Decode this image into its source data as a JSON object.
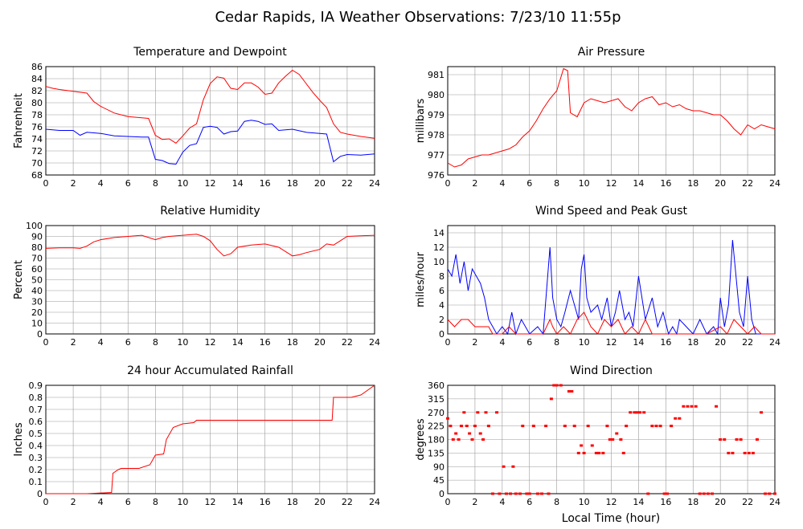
{
  "title": "Cedar Rapids, IA Weather Observations: 7/23/10 11:55p",
  "xlabel_shared": "Local Time (hour)",
  "colors": {
    "red": "#ff0000",
    "blue": "#0000ff",
    "grid": "#999999"
  },
  "chart_data": [
    {
      "type": "line",
      "title": "Temperature and Dewpoint",
      "xlabel": "",
      "ylabel": "Fahrenheit",
      "xlim": [
        0,
        24
      ],
      "ylim": [
        68,
        86
      ],
      "xticks": [
        0,
        2,
        4,
        6,
        8,
        10,
        12,
        14,
        16,
        18,
        20,
        22,
        24
      ],
      "yticks": [
        68,
        70,
        72,
        74,
        76,
        78,
        80,
        82,
        84,
        86
      ],
      "series": [
        {
          "color": "#ff0000",
          "x": [
            0,
            0.5,
            1,
            2,
            3,
            3.5,
            4,
            5,
            6,
            7,
            7.5,
            8,
            8.5,
            9,
            9.5,
            10,
            10.5,
            11,
            11.5,
            12,
            12.5,
            13,
            13.5,
            14,
            14.5,
            15,
            15.5,
            16,
            16.5,
            17,
            17.5,
            18,
            18.5,
            19,
            19.5,
            20,
            20.5,
            21,
            21.5,
            22,
            23,
            24
          ],
          "y": [
            82.7,
            82.4,
            82.2,
            81.9,
            81.6,
            80.2,
            79.4,
            78.3,
            77.7,
            77.5,
            77.4,
            74.6,
            73.9,
            74,
            73.3,
            74.5,
            75.8,
            76.5,
            80.5,
            83.2,
            84.3,
            84.1,
            82.4,
            82.2,
            83.3,
            83.3,
            82.6,
            81.4,
            81.6,
            83.3,
            84.4,
            85.4,
            84.7,
            83.2,
            81.7,
            80.4,
            79.2,
            76.5,
            75.1,
            74.8,
            74.4,
            74.1
          ]
        },
        {
          "color": "#0000ff",
          "x": [
            0,
            0.5,
            1,
            2,
            2.5,
            3,
            4,
            5,
            6,
            7,
            7.5,
            8,
            8.5,
            9,
            9.5,
            10,
            10.5,
            11,
            11.5,
            12,
            12.5,
            13,
            13.5,
            14,
            14.5,
            15,
            15.5,
            16,
            16.5,
            17,
            18,
            19,
            20,
            20.5,
            21,
            21.5,
            22,
            23,
            24
          ],
          "y": [
            75.6,
            75.5,
            75.4,
            75.4,
            74.6,
            75.1,
            74.9,
            74.5,
            74.4,
            74.3,
            74.3,
            70.6,
            70.4,
            69.9,
            69.8,
            71.8,
            72.9,
            73.2,
            75.9,
            76.1,
            75.9,
            74.8,
            75.2,
            75.3,
            76.9,
            77.1,
            76.9,
            76.4,
            76.5,
            75.4,
            75.6,
            75.1,
            74.9,
            74.8,
            70.2,
            71.1,
            71.4,
            71.3,
            71.5
          ]
        }
      ]
    },
    {
      "type": "line",
      "title": "Air Pressure",
      "xlabel": "",
      "ylabel": "millibars",
      "xlim": [
        0,
        24
      ],
      "ylim": [
        976,
        981.4
      ],
      "xticks": [
        0,
        2,
        4,
        6,
        8,
        10,
        12,
        14,
        16,
        18,
        20,
        22,
        24
      ],
      "yticks": [
        976,
        977,
        978,
        979,
        980,
        981
      ],
      "series": [
        {
          "color": "#ff0000",
          "x": [
            0,
            0.5,
            1,
            1.5,
            2,
            2.5,
            3,
            3.5,
            4,
            4.5,
            5,
            5.5,
            6,
            6.5,
            7,
            7.5,
            8,
            8.5,
            8.8,
            9,
            9.5,
            10,
            10.5,
            11,
            11.5,
            12,
            12.5,
            13,
            13.5,
            14,
            14.5,
            15,
            15.5,
            16,
            16.5,
            17,
            17.5,
            18,
            18.5,
            19,
            19.5,
            20,
            20.5,
            21,
            21.5,
            22,
            22.5,
            23,
            23.5,
            24
          ],
          "y": [
            976.6,
            976.4,
            976.5,
            976.8,
            976.9,
            977.0,
            977.0,
            977.1,
            977.2,
            977.3,
            977.5,
            977.9,
            978.2,
            978.7,
            979.3,
            979.8,
            980.2,
            981.3,
            981.2,
            979.1,
            978.9,
            979.6,
            979.8,
            979.7,
            979.6,
            979.7,
            979.8,
            979.4,
            979.2,
            979.6,
            979.8,
            979.9,
            979.5,
            979.6,
            979.4,
            979.5,
            979.3,
            979.2,
            979.2,
            979.1,
            979.0,
            979.0,
            978.7,
            978.3,
            978.0,
            978.5,
            978.3,
            978.5,
            978.4,
            978.3
          ]
        }
      ]
    },
    {
      "type": "line",
      "title": "Relative Humidity",
      "xlabel": "",
      "ylabel": "Percent",
      "xlim": [
        0,
        24
      ],
      "ylim": [
        0,
        100
      ],
      "xticks": [
        0,
        2,
        4,
        6,
        8,
        10,
        12,
        14,
        16,
        18,
        20,
        22,
        24
      ],
      "yticks": [
        0,
        10,
        20,
        30,
        40,
        50,
        60,
        70,
        80,
        90,
        100
      ],
      "series": [
        {
          "color": "#ff0000",
          "x": [
            0,
            1,
            2,
            2.5,
            3,
            3.5,
            4,
            5,
            6,
            7,
            8,
            8.5,
            9,
            10,
            11,
            11.5,
            12,
            12.5,
            13,
            13.5,
            14,
            15,
            16,
            17,
            18,
            18.5,
            19,
            20,
            20.5,
            21,
            21.5,
            22,
            23,
            24
          ],
          "y": [
            79,
            79.5,
            79.5,
            79,
            81,
            85,
            87,
            89,
            90,
            91,
            87,
            89,
            90,
            91,
            92,
            90,
            86,
            78,
            72,
            74,
            80,
            82,
            83,
            80,
            72,
            73,
            75,
            78,
            83,
            82,
            86,
            90,
            90.5,
            91
          ]
        }
      ]
    },
    {
      "type": "line",
      "title": "Wind Speed and Peak Gust",
      "xlabel": "",
      "ylabel": "miles/hour",
      "xlim": [
        0,
        24
      ],
      "ylim": [
        0,
        15
      ],
      "xticks": [
        0,
        2,
        4,
        6,
        8,
        10,
        12,
        14,
        16,
        18,
        20,
        22,
        24
      ],
      "yticks": [
        0,
        2,
        4,
        6,
        8,
        10,
        12,
        14
      ],
      "series": [
        {
          "color": "#0000ff",
          "x": [
            0,
            0.3,
            0.6,
            0.9,
            1.2,
            1.5,
            1.8,
            2.1,
            2.4,
            2.7,
            3,
            3.3,
            3.6,
            4,
            4.4,
            4.7,
            5,
            5.4,
            6,
            6.6,
            7,
            7.5,
            7.7,
            8,
            8.3,
            8.6,
            9,
            9.3,
            9.6,
            9.8,
            10,
            10.2,
            10.5,
            11,
            11.3,
            11.7,
            12,
            12.3,
            12.6,
            13,
            13.3,
            13.6,
            14,
            14.5,
            15,
            15.4,
            15.8,
            16.2,
            16.5,
            16.8,
            17,
            17.5,
            18,
            18.5,
            19,
            19.5,
            19.8,
            20,
            20.3,
            20.6,
            20.9,
            21.1,
            21.4,
            21.7,
            22,
            22.3,
            22.6,
            23,
            23.5,
            24
          ],
          "y": [
            9,
            8,
            11,
            7,
            10,
            6,
            9,
            8,
            7,
            5,
            2,
            1,
            0,
            1,
            0,
            3,
            0,
            2,
            0,
            1,
            0,
            12,
            5,
            2,
            1,
            3,
            6,
            4,
            2,
            9,
            11,
            5,
            3,
            4,
            2,
            5,
            1,
            3,
            6,
            2,
            3,
            1,
            8,
            2,
            5,
            1,
            3,
            0,
            1,
            0,
            2,
            1,
            0,
            2,
            0,
            1,
            0,
            5,
            1,
            4,
            13,
            9,
            3,
            1,
            8,
            2,
            0,
            0,
            0,
            0
          ]
        },
        {
          "color": "#ff0000",
          "x": [
            0,
            0.5,
            1,
            1.5,
            2,
            2.5,
            3,
            3.3,
            4,
            4.5,
            5,
            6,
            7,
            7.5,
            7.7,
            8,
            8.5,
            9,
            9.5,
            10,
            10.5,
            11,
            11.5,
            12,
            12.5,
            13,
            13.5,
            14,
            14.5,
            15,
            16,
            17,
            18,
            19,
            20,
            20.5,
            21,
            21.5,
            22,
            22.5,
            23,
            24
          ],
          "y": [
            2,
            1,
            2,
            2,
            1,
            1,
            1,
            0,
            0,
            1,
            0,
            0,
            0,
            2,
            1,
            0,
            1,
            0,
            2,
            3,
            1,
            0,
            2,
            1,
            2,
            0,
            1,
            0,
            2,
            0,
            0,
            0,
            0,
            0,
            1,
            0,
            2,
            1,
            0,
            1,
            0,
            0
          ]
        }
      ]
    },
    {
      "type": "line",
      "title": "24 hour Accumulated Rainfall",
      "xlabel": "",
      "ylabel": "Inches",
      "xlim": [
        0,
        24
      ],
      "ylim": [
        0,
        0.9
      ],
      "xticks": [
        0,
        2,
        4,
        6,
        8,
        10,
        12,
        14,
        16,
        18,
        20,
        22,
        24
      ],
      "yticks": [
        0,
        0.1,
        0.2,
        0.3,
        0.4,
        0.5,
        0.6,
        0.7,
        0.8,
        0.9
      ],
      "series": [
        {
          "color": "#ff0000",
          "x": [
            0,
            3,
            4.8,
            4.9,
            5.3,
            5.5,
            6.8,
            7.6,
            8.0,
            8.6,
            8.8,
            9.3,
            10.0,
            10.8,
            11.0,
            20.9,
            21.0,
            22.3,
            23.0,
            24.0
          ],
          "y": [
            0,
            0,
            0.01,
            0.17,
            0.2,
            0.21,
            0.21,
            0.24,
            0.32,
            0.33,
            0.45,
            0.55,
            0.58,
            0.59,
            0.61,
            0.61,
            0.8,
            0.8,
            0.82,
            0.9
          ]
        }
      ]
    },
    {
      "type": "scatter",
      "title": "Wind Direction",
      "xlabel": "Local Time (hour)",
      "ylabel": "degrees",
      "xlim": [
        0,
        24
      ],
      "ylim": [
        0,
        360
      ],
      "xticks": [
        0,
        2,
        4,
        6,
        8,
        10,
        12,
        14,
        16,
        18,
        20,
        22,
        24
      ],
      "yticks": [
        0,
        45,
        90,
        135,
        180,
        225,
        270,
        315,
        360
      ],
      "series": [
        {
          "color": "#ff0000",
          "x": [
            0,
            0.2,
            0.4,
            0.6,
            0.8,
            1,
            1.2,
            1.4,
            1.6,
            1.8,
            2,
            2.2,
            2.4,
            2.6,
            2.8,
            3,
            3.3,
            3.6,
            3.8,
            4.1,
            4.3,
            4.6,
            4.8,
            5,
            5.3,
            5.5,
            5.8,
            6,
            6.3,
            6.6,
            6.9,
            7.2,
            7.4,
            7.6,
            7.8,
            8,
            8.3,
            8.6,
            8.9,
            9.1,
            9.3,
            9.6,
            9.8,
            10,
            10.3,
            10.6,
            10.9,
            11.1,
            11.4,
            11.7,
            11.9,
            12.1,
            12.4,
            12.7,
            12.9,
            13.1,
            13.4,
            13.7,
            13.9,
            14.1,
            14.4,
            14.7,
            15,
            15.3,
            15.6,
            15.9,
            16.1,
            16.4,
            16.7,
            17,
            17.3,
            17.6,
            17.9,
            18.2,
            18.5,
            18.8,
            19.1,
            19.4,
            19.7,
            20,
            20.3,
            20.6,
            20.9,
            21.2,
            21.5,
            21.8,
            22.1,
            22.4,
            22.7,
            23,
            23.3,
            23.6,
            24
          ],
          "y": [
            250,
            225,
            180,
            200,
            180,
            225,
            270,
            225,
            200,
            180,
            225,
            270,
            200,
            180,
            270,
            225,
            0,
            270,
            0,
            90,
            0,
            0,
            90,
            0,
            0,
            225,
            0,
            0,
            225,
            0,
            0,
            225,
            0,
            315,
            360,
            360,
            360,
            225,
            340,
            340,
            225,
            135,
            160,
            135,
            225,
            160,
            135,
            135,
            135,
            225,
            180,
            180,
            200,
            180,
            135,
            225,
            270,
            270,
            270,
            270,
            270,
            0,
            225,
            225,
            225,
            0,
            0,
            225,
            250,
            250,
            290,
            290,
            290,
            290,
            0,
            0,
            0,
            0,
            290,
            180,
            180,
            135,
            135,
            180,
            180,
            135,
            135,
            135,
            180,
            270,
            0,
            0,
            0
          ]
        }
      ]
    }
  ]
}
